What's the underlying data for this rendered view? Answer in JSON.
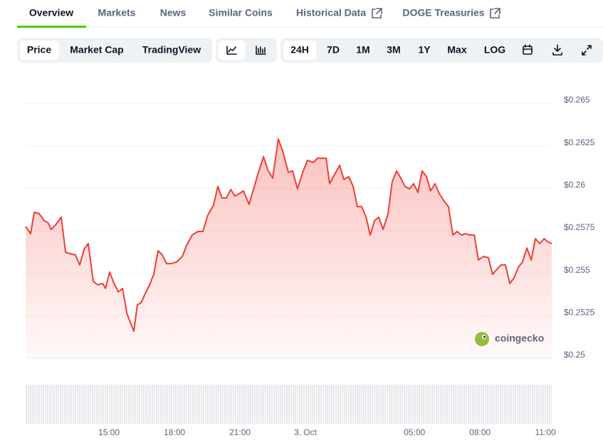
{
  "tabs": [
    "Overview",
    "Markets",
    "News",
    "Similar Coins",
    "Historical Data",
    "DOGE Treasuries"
  ],
  "chart_views": [
    "Price",
    "Market Cap",
    "TradingView"
  ],
  "ranges": [
    "24H",
    "7D",
    "1M",
    "3M",
    "1Y",
    "Max",
    "LOG"
  ],
  "watermark": "coingecko",
  "chart_data": {
    "type": "line",
    "color": "#ef3e36",
    "x": [
      11.18,
      11.41,
      11.57,
      11.8,
      12.03,
      12.19,
      12.35,
      12.55,
      12.81,
      13.01,
      13.2,
      13.46,
      13.66,
      13.86,
      14.05,
      14.28,
      14.48,
      14.71,
      14.84,
      15.03,
      15.23,
      15.43,
      15.62,
      15.82,
      16.01,
      16.14,
      16.3,
      16.47,
      16.66,
      16.86,
      17.05,
      17.25,
      17.44,
      17.64,
      17.84,
      18.1,
      18.36,
      18.55,
      18.81,
      19.08,
      19.3,
      19.53,
      19.79,
      19.99,
      20.18,
      20.38,
      20.58,
      20.77,
      20.97,
      21.16,
      21.42,
      21.62,
      21.82,
      22.08,
      22.27,
      22.5,
      22.76,
      22.96,
      23.22,
      23.41,
      23.64,
      23.9,
      24.1,
      24.36,
      24.56,
      24.79,
      24.95,
      25.11,
      25.34,
      25.57,
      25.76,
      25.99,
      26.19,
      26.38,
      26.58,
      26.78,
      26.97,
      27.17,
      27.36,
      27.56,
      27.79,
      27.98,
      28.18,
      28.37,
      28.57,
      28.77,
      28.96,
      29.16,
      29.35,
      29.55,
      29.74,
      29.94,
      30.14,
      30.37,
      30.56,
      30.76,
      30.95,
      31.15,
      31.34,
      31.54,
      31.74,
      31.93,
      32.16,
      32.39,
      32.58,
      32.78,
      32.97,
      33.17,
      33.37,
      33.56,
      33.76,
      33.95,
      34.15,
      34.35,
      34.54,
      34.74,
      34.94,
      35.13,
      35.29
    ],
    "values": [
      0.25775,
      0.25733,
      0.25859,
      0.25851,
      0.25809,
      0.258,
      0.25758,
      0.25784,
      0.2583,
      0.25624,
      0.25616,
      0.25608,
      0.25549,
      0.25641,
      0.25675,
      0.25452,
      0.25432,
      0.2544,
      0.25411,
      0.25507,
      0.2544,
      0.2539,
      0.25411,
      0.25264,
      0.25201,
      0.25159,
      0.25314,
      0.25327,
      0.25381,
      0.25432,
      0.25494,
      0.25633,
      0.25608,
      0.25557,
      0.25557,
      0.25566,
      0.25599,
      0.25662,
      0.25725,
      0.25746,
      0.25746,
      0.25842,
      0.25901,
      0.2601,
      0.25943,
      0.25943,
      0.25993,
      0.25955,
      0.25968,
      0.25985,
      0.25905,
      0.25993,
      0.26081,
      0.26186,
      0.2611,
      0.2606,
      0.2629,
      0.26219,
      0.26094,
      0.26102,
      0.25997,
      0.26102,
      0.26165,
      0.26152,
      0.26177,
      0.26177,
      0.26177,
      0.26027,
      0.26081,
      0.26135,
      0.26052,
      0.26068,
      0.2601,
      0.25892,
      0.25892,
      0.2583,
      0.25725,
      0.25809,
      0.2583,
      0.25758,
      0.25851,
      0.26039,
      0.26102,
      0.2606,
      0.2601,
      0.25997,
      0.26027,
      0.25976,
      0.26102,
      0.26068,
      0.25985,
      0.26027,
      0.25968,
      0.25922,
      0.25892,
      0.25725,
      0.25746,
      0.25725,
      0.25733,
      0.25725,
      0.25725,
      0.25578,
      0.25599,
      0.25591,
      0.25494,
      0.25524,
      0.25549,
      0.25549,
      0.2544,
      0.25473,
      0.25536,
      0.25566,
      0.25649,
      0.25578,
      0.25704,
      0.25675,
      0.25704,
      0.25683,
      0.25675
    ],
    "xlim": [
      11.18,
      35.29
    ],
    "xticks": [
      {
        "value": 15,
        "label": "15:00"
      },
      {
        "value": 18,
        "label": "18:00"
      },
      {
        "value": 21,
        "label": "21:00"
      },
      {
        "value": 24,
        "label": "3. Oct"
      },
      {
        "value": 29,
        "label": "05:00"
      },
      {
        "value": 32,
        "label": "08:00"
      },
      {
        "value": 35,
        "label": "11:00"
      }
    ],
    "ylim": [
      0.25,
      0.265
    ],
    "yticks": [
      {
        "value": 0.25,
        "label": "$0.25"
      },
      {
        "value": 0.2525,
        "label": "$0.2525"
      },
      {
        "value": 0.255,
        "label": "$0.255"
      },
      {
        "value": 0.2575,
        "label": "$0.2575"
      },
      {
        "value": 0.26,
        "label": "$0.26"
      },
      {
        "value": 0.2625,
        "label": "$0.2625"
      },
      {
        "value": 0.265,
        "label": "$0.265"
      }
    ],
    "grid": true
  }
}
